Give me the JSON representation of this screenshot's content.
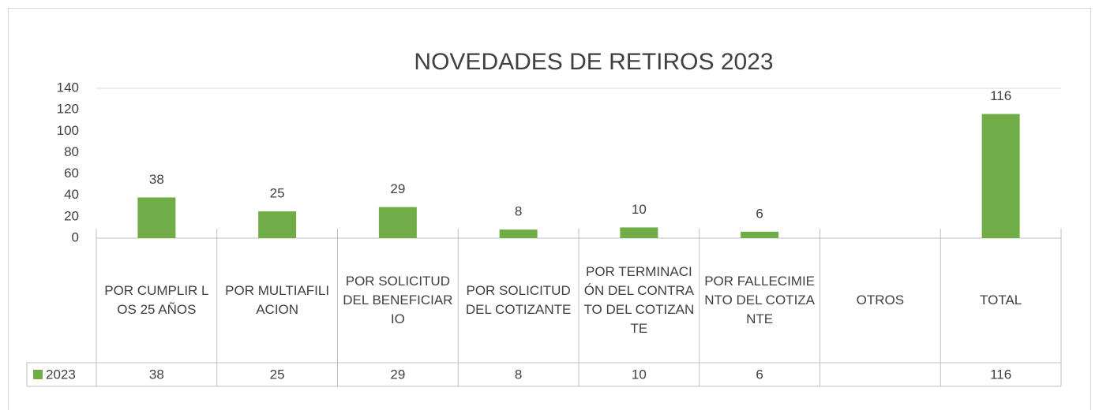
{
  "chart_data": {
    "type": "bar",
    "title": "NOVEDADES DE RETIROS 2023",
    "categories": [
      "POR CUMPLIR LOS 25 AÑOS",
      "POR MULTIAFILIACION",
      "POR SOLICITUD DEL BENEFICIARIO",
      "POR SOLICITUD DEL COTIZANTE",
      "POR TERMINACIÓN DEL CONTRATO DEL COTIZANTE",
      "POR FALLECIMIENTO DEL COTIZANTE",
      "OTROS",
      "TOTAL"
    ],
    "series": [
      {
        "name": "2023",
        "color": "#70ad47",
        "values": [
          38,
          25,
          29,
          8,
          10,
          6,
          null,
          116
        ]
      }
    ],
    "ylim": [
      0,
      140
    ],
    "yticks": [
      0,
      20,
      40,
      60,
      80,
      100,
      120,
      140
    ],
    "grid": false,
    "data_table": true
  }
}
